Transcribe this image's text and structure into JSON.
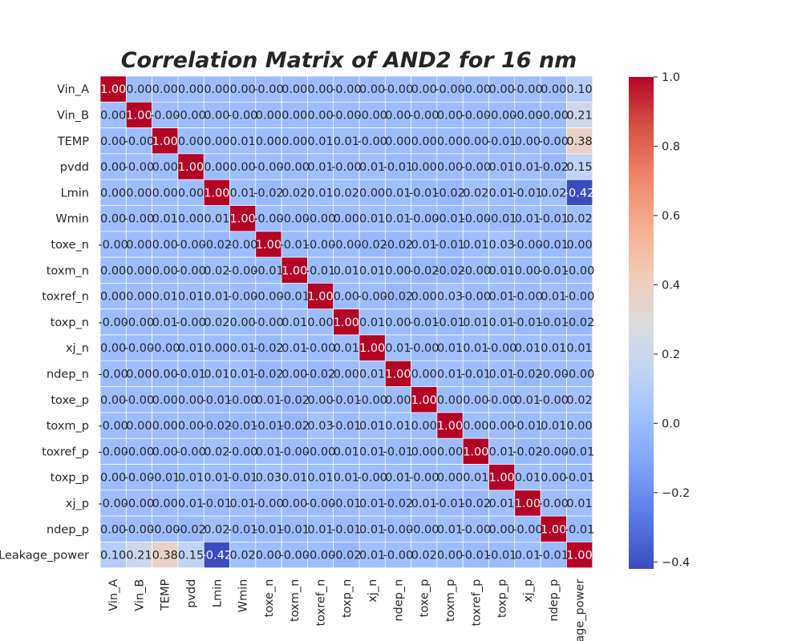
{
  "chart_data": {
    "type": "heatmap",
    "title": "Correlation Matrix of AND2 for 16 nm",
    "labels": [
      "Vin_A",
      "Vin_B",
      "TEMP",
      "pvdd",
      "Lmin",
      "Wmin",
      "toxe_n",
      "toxm_n",
      "toxref_n",
      "toxp_n",
      "xj_n",
      "ndep_n",
      "toxe_p",
      "toxm_p",
      "toxref_p",
      "toxp_p",
      "xj_p",
      "ndep_p",
      "Leakage_power"
    ],
    "x_tick_labels": [
      "Vin_A",
      "Vin_B",
      "TEMP",
      "pvdd",
      "Lmin",
      "Wmin",
      "toxe_n",
      "toxm_n",
      "toxref_n",
      "toxp_n",
      "xj_n",
      "ndep_n",
      "toxe_p",
      "toxm_p",
      "toxref_p",
      "toxp_p",
      "xj_p",
      "ndep_p",
      "age_power"
    ],
    "cell_labels": [
      [
        "1.00",
        "0.00",
        "0.00",
        "0.00",
        "0.00",
        "0.00",
        "-0.00",
        "0.00",
        "0.00",
        "-0.00",
        "0.00",
        "-0.00",
        "0.00",
        "-0.00",
        "-0.00",
        "0.00",
        "-0.00",
        "0.00",
        "0.10"
      ],
      [
        "0.00",
        "1.00",
        "-0.00",
        "-0.00",
        "0.00",
        "-0.00",
        "0.00",
        "0.00",
        "0.00",
        "-0.00",
        "-0.00",
        "0.00",
        "-0.00",
        "0.00",
        "-0.00",
        "-0.00",
        "-0.00",
        "-0.00",
        "0.21"
      ],
      [
        "0.00",
        "-0.00",
        "1.00",
        "0.00",
        "0.00",
        "0.01",
        "0.00",
        "0.00",
        "0.01",
        "0.01",
        "-0.00",
        "0.00",
        "0.00",
        "0.00",
        "0.00",
        "-0.01",
        "0.00",
        "-0.00",
        "0.38"
      ],
      [
        "0.00",
        "-0.00",
        "0.00",
        "1.00",
        "0.00",
        "0.00",
        "-0.00",
        "-0.00",
        "0.01",
        "-0.00",
        "0.01",
        "-0.01",
        "0.00",
        "0.00",
        "-0.00",
        "0.01",
        "0.01",
        "-0.02",
        "0.15"
      ],
      [
        "0.00",
        "0.00",
        "0.00",
        "0.00",
        "1.00",
        "0.01",
        "-0.02",
        "0.02",
        "0.01",
        "0.02",
        "0.00",
        "0.01",
        "-0.01",
        "-0.02",
        "0.02",
        "0.01",
        "-0.01",
        "0.02",
        "-0.42"
      ],
      [
        "0.00",
        "-0.00",
        "0.01",
        "0.00",
        "0.01",
        "1.00",
        "-0.00",
        "-0.00",
        "-0.00",
        "0.00",
        "0.01",
        "0.01",
        "-0.00",
        "-0.01",
        "-0.00",
        "-0.01",
        "0.01",
        "-0.01",
        "0.02"
      ],
      [
        "-0.00",
        "0.00",
        "0.00",
        "-0.00",
        "-0.02",
        "-0.00",
        "1.00",
        "-0.01",
        "-0.00",
        "-0.00",
        "-0.02",
        "-0.02",
        "0.01",
        "-0.01",
        "0.01",
        "0.03",
        "-0.00",
        "-0.01",
        "0.00"
      ],
      [
        "0.00",
        "0.00",
        "0.00",
        "-0.00",
        "0.02",
        "-0.00",
        "-0.01",
        "1.00",
        "-0.01",
        "0.01",
        "0.01",
        "0.00",
        "-0.02",
        "-0.02",
        "-0.00",
        "0.01",
        "0.00",
        "-0.01",
        "-0.00"
      ],
      [
        "0.00",
        "0.00",
        "0.01",
        "0.01",
        "0.01",
        "-0.00",
        "-0.00",
        "-0.01",
        "1.00",
        "0.00",
        "-0.00",
        "-0.02",
        "0.00",
        "0.03",
        "-0.00",
        "0.01",
        "-0.00",
        "0.01",
        "-0.00"
      ],
      [
        "-0.00",
        "-0.00",
        "0.01",
        "-0.00",
        "0.02",
        "0.00",
        "-0.00",
        "0.01",
        "0.00",
        "1.00",
        "0.01",
        "0.00",
        "-0.01",
        "-0.01",
        "0.01",
        "0.01",
        "-0.01",
        "-0.01",
        "-0.02"
      ],
      [
        "0.00",
        "-0.00",
        "-0.00",
        "0.01",
        "0.00",
        "0.01",
        "-0.02",
        "0.01",
        "-0.00",
        "0.01",
        "1.00",
        "0.01",
        "-0.00",
        "0.01",
        "0.01",
        "-0.00",
        "0.01",
        "0.01",
        "0.01"
      ],
      [
        "-0.00",
        "0.00",
        "0.00",
        "-0.01",
        "0.01",
        "0.01",
        "-0.02",
        "0.00",
        "-0.02",
        "0.00",
        "0.01",
        "1.00",
        "0.00",
        "0.01",
        "-0.01",
        "0.01",
        "-0.02",
        "-0.00",
        "-0.00"
      ],
      [
        "0.00",
        "-0.00",
        "0.00",
        "0.00",
        "-0.01",
        "-0.00",
        "0.01",
        "-0.02",
        "0.00",
        "-0.01",
        "-0.00",
        "0.00",
        "1.00",
        "0.00",
        "0.00",
        "-0.00",
        "0.01",
        "-0.00",
        "0.02"
      ],
      [
        "-0.00",
        "0.00",
        "0.00",
        "0.00",
        "-0.02",
        "-0.01",
        "-0.01",
        "-0.02",
        "0.03",
        "-0.01",
        "0.01",
        "0.01",
        "0.00",
        "1.00",
        "0.00",
        "0.00",
        "-0.01",
        "0.01",
        "0.00"
      ],
      [
        "-0.00",
        "-0.00",
        "0.00",
        "-0.00",
        "0.02",
        "-0.00",
        "0.01",
        "-0.00",
        "-0.00",
        "0.01",
        "0.01",
        "-0.01",
        "0.00",
        "0.00",
        "1.00",
        "0.01",
        "-0.02",
        "-0.00",
        "-0.01"
      ],
      [
        "0.00",
        "-0.00",
        "-0.01",
        "0.01",
        "0.01",
        "-0.01",
        "0.03",
        "0.01",
        "0.01",
        "0.01",
        "-0.00",
        "0.01",
        "-0.00",
        "0.00",
        "0.01",
        "1.00",
        "0.01",
        "0.00",
        "-0.01"
      ],
      [
        "-0.00",
        "-0.00",
        "0.00",
        "0.01",
        "-0.01",
        "0.01",
        "-0.00",
        "0.00",
        "-0.00",
        "-0.01",
        "0.01",
        "-0.02",
        "0.01",
        "-0.01",
        "-0.02",
        "0.01",
        "1.00",
        "-0.00",
        "0.01"
      ],
      [
        "0.00",
        "-0.00",
        "-0.00",
        "-0.02",
        "0.02",
        "-0.01",
        "-0.01",
        "-0.01",
        "0.01",
        "-0.01",
        "0.01",
        "-0.00",
        "-0.00",
        "0.01",
        "-0.00",
        "0.00",
        "-0.00",
        "1.00",
        "-0.01"
      ],
      [
        "0.10",
        "0.21",
        "0.38",
        "0.15",
        "-0.42",
        "0.02",
        "0.00",
        "-0.00",
        "-0.00",
        "-0.02",
        "0.01",
        "-0.00",
        "0.02",
        "0.00",
        "-0.01",
        "-0.01",
        "0.01",
        "-0.01",
        "1.00"
      ]
    ],
    "colormap": "coolwarm",
    "vmin": -0.42,
    "vmax": 1.0,
    "colorbar_ticks": [
      "1.0",
      "0.8",
      "0.6",
      "0.4",
      "0.2",
      "0.0",
      "−0.2",
      "−0.4"
    ],
    "colorbar_tick_values": [
      1.0,
      0.8,
      0.6,
      0.4,
      0.2,
      0.0,
      -0.2,
      -0.4
    ],
    "colorbar_colors": [
      "#3b4cc0",
      "#5977e3",
      "#7b9ff9",
      "#9ebeff",
      "#c0d4f5",
      "#dddcdc",
      "#f2cbb7",
      "#f7ac8e",
      "#ee8468",
      "#d65244",
      "#b40426"
    ],
    "cell_border_color": "#ffffff"
  }
}
